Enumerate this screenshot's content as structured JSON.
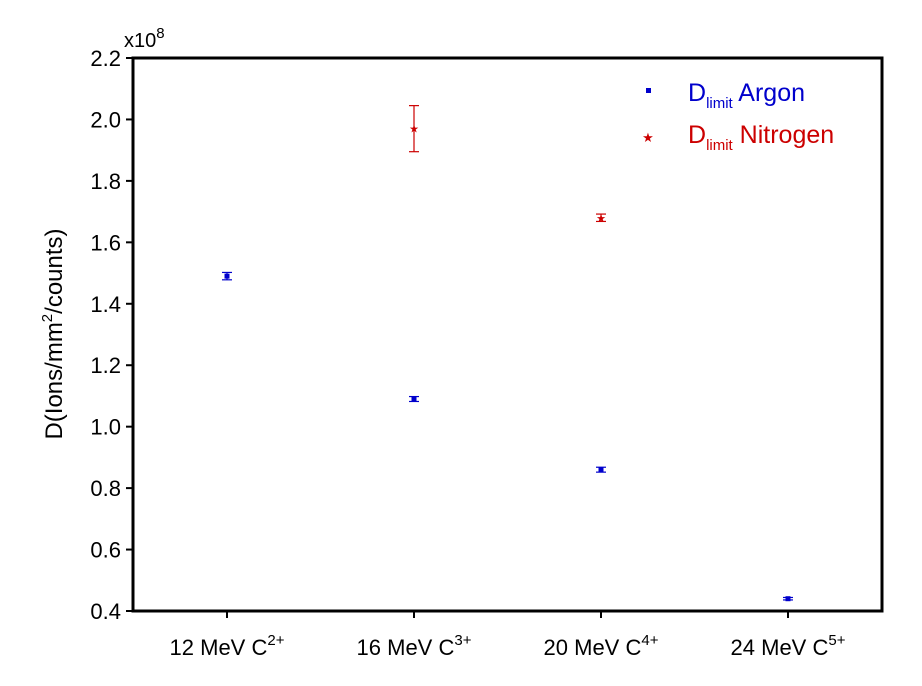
{
  "chart_data": {
    "type": "scatter",
    "title": "",
    "ylabel": {
      "prefix": "D(Ions/mm",
      "sup": "2",
      "suffix": "/counts)"
    },
    "y_multiplier": {
      "base": "x10",
      "exp": "8"
    },
    "ylim": [
      0.4,
      2.2
    ],
    "yticks": [
      "0.4",
      "0.6",
      "0.8",
      "1.0",
      "1.2",
      "1.4",
      "1.6",
      "1.8",
      "2.0",
      "2.2"
    ],
    "categories": [
      {
        "base": "12 MeV C",
        "sup": "2+"
      },
      {
        "base": "16 MeV C",
        "sup": "3+"
      },
      {
        "base": "20 MeV C",
        "sup": "4+"
      },
      {
        "base": "24 MeV C",
        "sup": "5+"
      }
    ],
    "series": [
      {
        "legend_main": "D",
        "legend_sub": "limit",
        "legend_rest": " Argon",
        "color": "#0000cc",
        "marker": "square",
        "values": [
          1.49,
          1.09,
          0.86,
          0.44
        ],
        "errors": [
          0.012,
          0.008,
          0.008,
          0.004
        ]
      },
      {
        "legend_main": "D",
        "legend_sub": "limit",
        "legend_rest": " Nitrogen",
        "color": "#cc0000",
        "marker": "star",
        "values": [
          null,
          1.97,
          1.68,
          null
        ],
        "errors": [
          null,
          0.075,
          0.012,
          null
        ]
      }
    ],
    "legend_position": "top-right",
    "grid": false
  }
}
